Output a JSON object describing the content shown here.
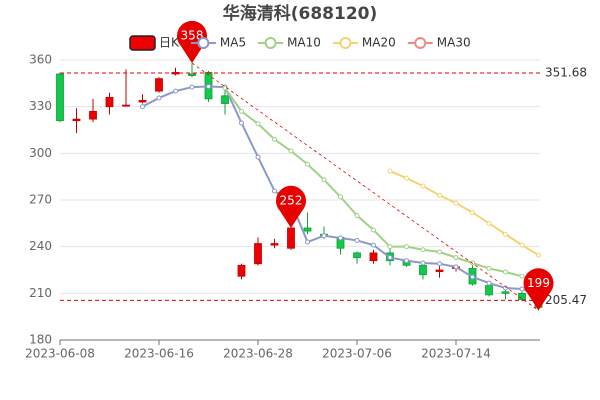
{
  "chart_data": {
    "type": "candlestick",
    "title": "华海清科(688120)",
    "categories": [
      "2023-06-08",
      null,
      null,
      null,
      null,
      null,
      "2023-06-16",
      null,
      null,
      null,
      null,
      null,
      "2023-06-28",
      null,
      null,
      null,
      null,
      null,
      "2023-07-06",
      null,
      null,
      null,
      null,
      null,
      "2023-07-14",
      null,
      null,
      null,
      null,
      null
    ],
    "ylim": [
      180,
      360
    ],
    "yticks": [
      180,
      210,
      240,
      270,
      300,
      330,
      360
    ],
    "grid": true,
    "series": [
      {
        "name": "日K",
        "type": "candlestick",
        "up_color": "#ee0000",
        "down_color": "#14c94a",
        "open": [
          351,
          321,
          322,
          330,
          330.5,
          333,
          340,
          351,
          351,
          352,
          337,
          221,
          229,
          241,
          239,
          252,
          248,
          246,
          236,
          231,
          236,
          231,
          228,
          224,
          226,
          226,
          215,
          211,
          210,
          207
        ],
        "close": [
          321,
          322,
          327,
          336,
          331,
          334,
          348,
          352,
          350,
          335,
          332,
          228,
          242,
          242,
          252,
          250,
          247,
          239,
          233,
          236,
          231,
          228,
          222,
          225,
          227,
          216,
          209,
          210,
          206,
          201
        ],
        "high": [
          352,
          329,
          335,
          339,
          354,
          338,
          349,
          355,
          358,
          353,
          343,
          229,
          246,
          245,
          252,
          262,
          253,
          247,
          237,
          238,
          240,
          232,
          229,
          228,
          228,
          231,
          216,
          212,
          211,
          208
        ],
        "low": [
          320,
          313,
          320,
          325,
          330,
          332,
          339,
          350,
          349,
          333,
          325,
          219,
          228,
          239,
          238,
          248,
          245,
          235,
          229,
          229,
          228,
          227,
          219,
          220,
          224,
          215,
          208,
          206,
          205,
          199
        ]
      },
      {
        "name": "MA5",
        "type": "line",
        "color": "#8d98c9",
        "values": [
          null,
          null,
          null,
          null,
          null,
          330,
          335.6,
          340,
          342.6,
          343,
          342.6,
          319.5,
          297.6,
          275.8,
          268.7,
          243,
          247,
          245.6,
          244,
          241,
          233,
          231,
          229.5,
          229,
          227,
          220.5,
          216.6,
          213.4,
          212.8,
          208.4
        ]
      },
      {
        "name": "MA10",
        "type": "line",
        "color": "#9fd286",
        "values": [
          null,
          null,
          null,
          null,
          null,
          null,
          null,
          null,
          null,
          null,
          342,
          327,
          319,
          309,
          301.5,
          293,
          283,
          272,
          260,
          250.7,
          240,
          240,
          238,
          236.6,
          233,
          229.5,
          226,
          223.7,
          221,
          217
        ]
      },
      {
        "name": "MA20",
        "type": "line",
        "color": "#f6d273",
        "values": [
          null,
          null,
          null,
          null,
          null,
          null,
          null,
          null,
          null,
          null,
          null,
          null,
          null,
          null,
          null,
          null,
          null,
          null,
          null,
          null,
          288.6,
          284,
          279,
          273,
          268,
          262,
          255,
          248,
          241,
          234.6
        ]
      },
      {
        "name": "MA30",
        "type": "line",
        "color": "#f08a84",
        "values": [
          null,
          null,
          null,
          null,
          null,
          null,
          null,
          null,
          null,
          null,
          null,
          null,
          null,
          null,
          null,
          null,
          null,
          null,
          null,
          null,
          null,
          null,
          null,
          null,
          null,
          null,
          null,
          null,
          null,
          null
        ]
      }
    ],
    "mark_lines": [
      {
        "value": 351.68
      },
      {
        "value": 205.47
      }
    ],
    "mark_points": [
      {
        "index": 8,
        "value": 358
      },
      {
        "index": 14,
        "value": 252
      },
      {
        "index": 29,
        "value": 199
      }
    ],
    "mark_color": "#e60000",
    "trend_line": true
  }
}
